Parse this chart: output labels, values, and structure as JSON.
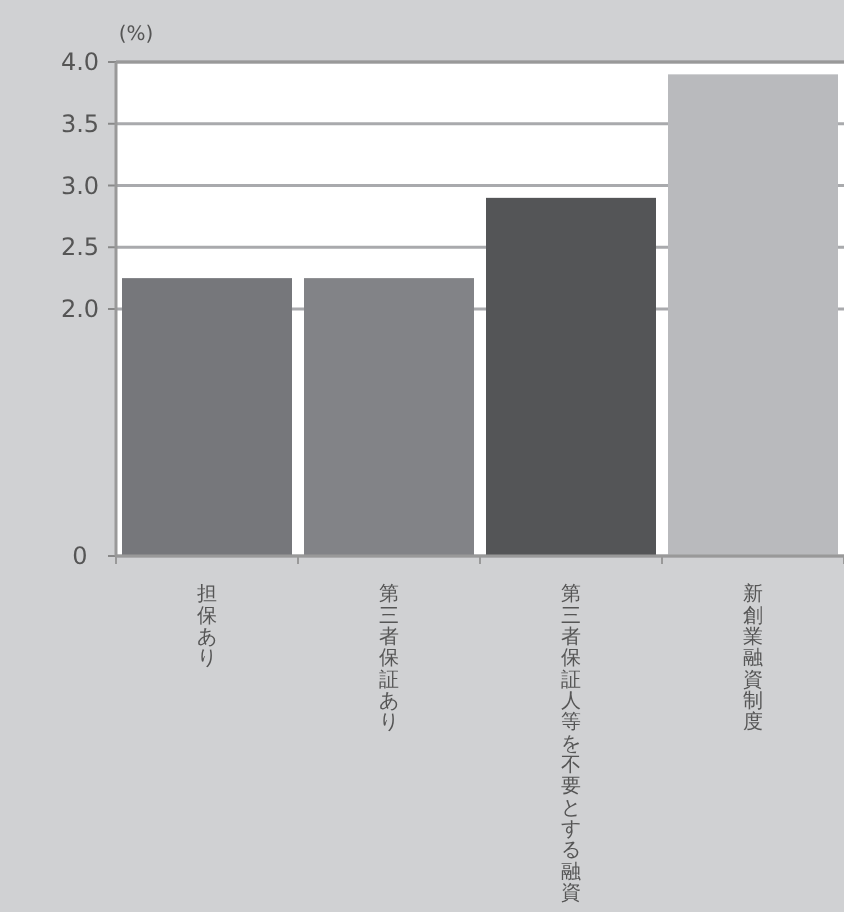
{
  "chart_data": {
    "type": "bar",
    "ylabel": "(%)",
    "categories": [
      "担保あり",
      "第三者保証あり",
      "第三者保証人等を不要とする融資",
      "新創業融資制度"
    ],
    "values": [
      2.25,
      2.25,
      2.9,
      3.9
    ],
    "colors": [
      "#76777b",
      "#828387",
      "#545557",
      "#b9babd"
    ],
    "ylim": [
      0,
      4.0
    ],
    "yticks": [
      0,
      {
        "value": 2.0,
        "label": "2.0"
      },
      {
        "value": 2.5,
        "label": "2.5"
      },
      {
        "value": 3.0,
        "label": "3.0"
      },
      {
        "value": 3.5,
        "label": "3.5"
      },
      {
        "value": 4.0,
        "label": "4.0"
      }
    ],
    "grid": "y",
    "legend": false
  }
}
